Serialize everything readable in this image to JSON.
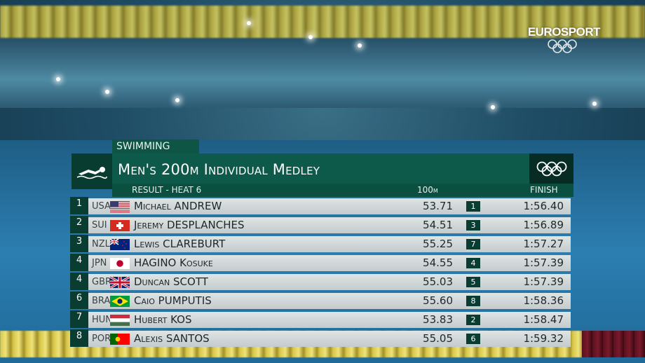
{
  "broadcaster": {
    "name": "EUROSPORT"
  },
  "scoreboard": {
    "sport": "SWIMMING",
    "event_title": "Men's 200m Individual Medley",
    "result_label": "RESULT - HEAT 6",
    "split_label": "100m",
    "finish_label": "FINISH",
    "sport_icon": "swimmer-icon",
    "olympic_icon": "olympic-rings-icon"
  },
  "results": [
    {
      "rank": "1",
      "country": "USA",
      "flag": "usa-flag",
      "athlete": "Michael ANDREW",
      "split": "53.71",
      "split_rank": "1",
      "finish": "1:56.40"
    },
    {
      "rank": "2",
      "country": "SUI",
      "flag": "switzerland-flag",
      "athlete": "Jeremy DESPLANCHES",
      "split": "54.51",
      "split_rank": "3",
      "finish": "1:56.89"
    },
    {
      "rank": "3",
      "country": "NZL",
      "flag": "new-zealand-flag",
      "athlete": "Lewis CLAREBURT",
      "split": "55.25",
      "split_rank": "7",
      "finish": "1:57.27"
    },
    {
      "rank": "4",
      "country": "JPN",
      "flag": "japan-flag",
      "athlete": "HAGINO Kosuke",
      "split": "54.55",
      "split_rank": "4",
      "finish": "1:57.39"
    },
    {
      "rank": "4",
      "country": "GBR",
      "flag": "great-britain-flag",
      "athlete": "Duncan SCOTT",
      "split": "55.03",
      "split_rank": "5",
      "finish": "1:57.39"
    },
    {
      "rank": "6",
      "country": "BRA",
      "flag": "brazil-flag",
      "athlete": "Caio PUMPUTIS",
      "split": "55.60",
      "split_rank": "8",
      "finish": "1:58.36"
    },
    {
      "rank": "7",
      "country": "HUN",
      "flag": "hungary-flag",
      "athlete": "Hubert KOS",
      "split": "53.83",
      "split_rank": "2",
      "finish": "1:58.47"
    },
    {
      "rank": "8",
      "country": "POR",
      "flag": "portugal-flag",
      "athlete": "Alexis SANTOS",
      "split": "55.05",
      "split_rank": "6",
      "finish": "1:59.32"
    }
  ]
}
